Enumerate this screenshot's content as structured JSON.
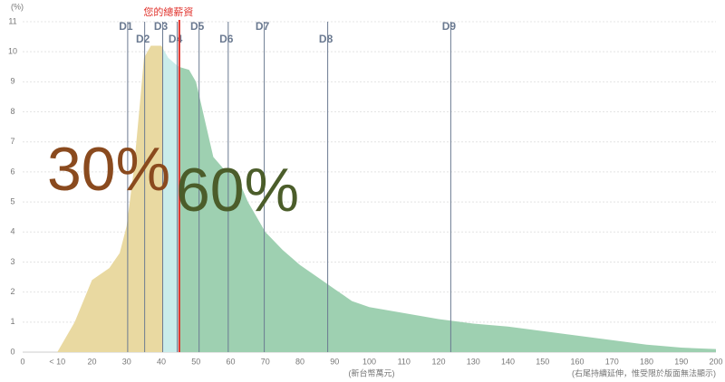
{
  "chart_data": {
    "type": "area",
    "y_axis_label": "(%)",
    "x_axis_label": "(新台幣萬元)",
    "note": "(右尾持續延伸，惟受限於版面無法顯示)",
    "x": [
      10,
      15,
      20,
      25,
      28,
      30,
      32,
      34,
      35,
      37,
      40,
      42,
      45,
      48,
      50,
      52,
      55,
      58,
      62,
      65,
      70,
      75,
      80,
      85,
      90,
      95,
      100,
      110,
      120,
      130,
      140,
      150,
      160,
      170,
      180,
      190,
      200
    ],
    "values": [
      0,
      1.0,
      2.4,
      2.8,
      3.3,
      4.2,
      6,
      8.5,
      9.8,
      10.2,
      10.2,
      9.8,
      9.5,
      9.4,
      9.0,
      8.0,
      6.5,
      6.1,
      5.8,
      5.0,
      4.0,
      3.4,
      2.9,
      2.5,
      2.1,
      1.7,
      1.5,
      1.3,
      1.1,
      0.95,
      0.85,
      0.7,
      0.55,
      0.4,
      0.25,
      0.15,
      0.1
    ],
    "colors": [
      "#e9d9a1",
      "#c9ecea",
      "#9ed0b1"
    ],
    "xlim": [
      0,
      200
    ],
    "ylim": [
      0,
      11
    ],
    "xticks": [
      0,
      {
        "value": 10,
        "label": "< 10"
      },
      20,
      30,
      40,
      50,
      60,
      70,
      80,
      90,
      100,
      110,
      120,
      130,
      140,
      150,
      160,
      170,
      180,
      190,
      200
    ],
    "yticks": [
      0,
      1,
      2,
      3,
      4,
      5,
      6,
      7,
      8,
      9,
      10,
      11
    ],
    "grid": true,
    "deciles": [
      {
        "label": "D1",
        "value": 30.3
      },
      {
        "label": "D2",
        "value": 35.2
      },
      {
        "label": "D3",
        "value": 40.4
      },
      {
        "label": "D4",
        "value": 44.6
      },
      {
        "label": "D5",
        "value": 50.9
      },
      {
        "label": "D6",
        "value": 59.3
      },
      {
        "label": "D7",
        "value": 69.7
      },
      {
        "label": "D8",
        "value": 88
      },
      {
        "label": "D9",
        "value": 123.5
      }
    ],
    "decile_color": "#6b7a91",
    "marker": {
      "label": "您的總薪資",
      "value": 45.2,
      "color": "#e0312b"
    },
    "shares": {
      "values": [
        30,
        60
      ],
      "value_labels": [
        "30%",
        "60%"
      ],
      "colors": [
        "#8a4a1e",
        "#4b5d2a"
      ]
    }
  }
}
